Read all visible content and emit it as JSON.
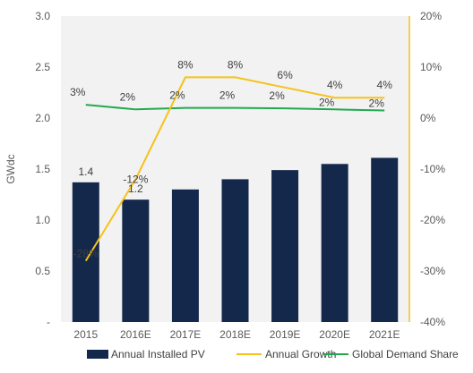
{
  "chart_data": {
    "type": "bar",
    "categories": [
      "2015",
      "2016E",
      "2017E",
      "2018E",
      "2019E",
      "2020E",
      "2021E"
    ],
    "series": [
      {
        "name": "Annual Installed PV",
        "type": "bar",
        "axis": "left",
        "color": "#14284b",
        "values": [
          1.37,
          1.2,
          1.3,
          1.4,
          1.49,
          1.55,
          1.61
        ],
        "labels": [
          "1.4",
          "1.2",
          "",
          "",
          "",
          "",
          ""
        ]
      },
      {
        "name": "Annual Growth",
        "type": "line",
        "axis": "right",
        "color": "#f5c21b",
        "values": [
          -28,
          -12,
          8,
          8,
          6,
          4,
          4
        ],
        "labels": [
          "-28%",
          "-12%",
          "8%",
          "8%",
          "6%",
          "4%",
          "4%"
        ]
      },
      {
        "name": "Global Demand Share",
        "type": "line",
        "axis": "right",
        "color": "#22a94f",
        "values": [
          2.6,
          1.7,
          2.0,
          2.0,
          1.9,
          1.7,
          1.5
        ],
        "labels": [
          "3%",
          "2%",
          "2%",
          "2%",
          "2%",
          "2%",
          "2%"
        ]
      }
    ],
    "ylabel": "GWdc",
    "left_axis": {
      "ylim": [
        0,
        3.0
      ],
      "ticks": [
        0,
        0.5,
        1.0,
        1.5,
        2.0,
        2.5,
        3.0
      ],
      "tick_labels": [
        "-",
        "0.5",
        "1.0",
        "1.5",
        "2.0",
        "2.5",
        "3.0"
      ]
    },
    "right_axis": {
      "ylim": [
        -40,
        20
      ],
      "ticks": [
        -40,
        -30,
        -20,
        -10,
        0,
        10,
        20
      ],
      "tick_labels": [
        "-40%",
        "-30%",
        "-20%",
        "-10%",
        "0%",
        "10%",
        "20%"
      ]
    },
    "background_color": "#f2f2f2",
    "grid": false,
    "legend_position": "bottom"
  }
}
